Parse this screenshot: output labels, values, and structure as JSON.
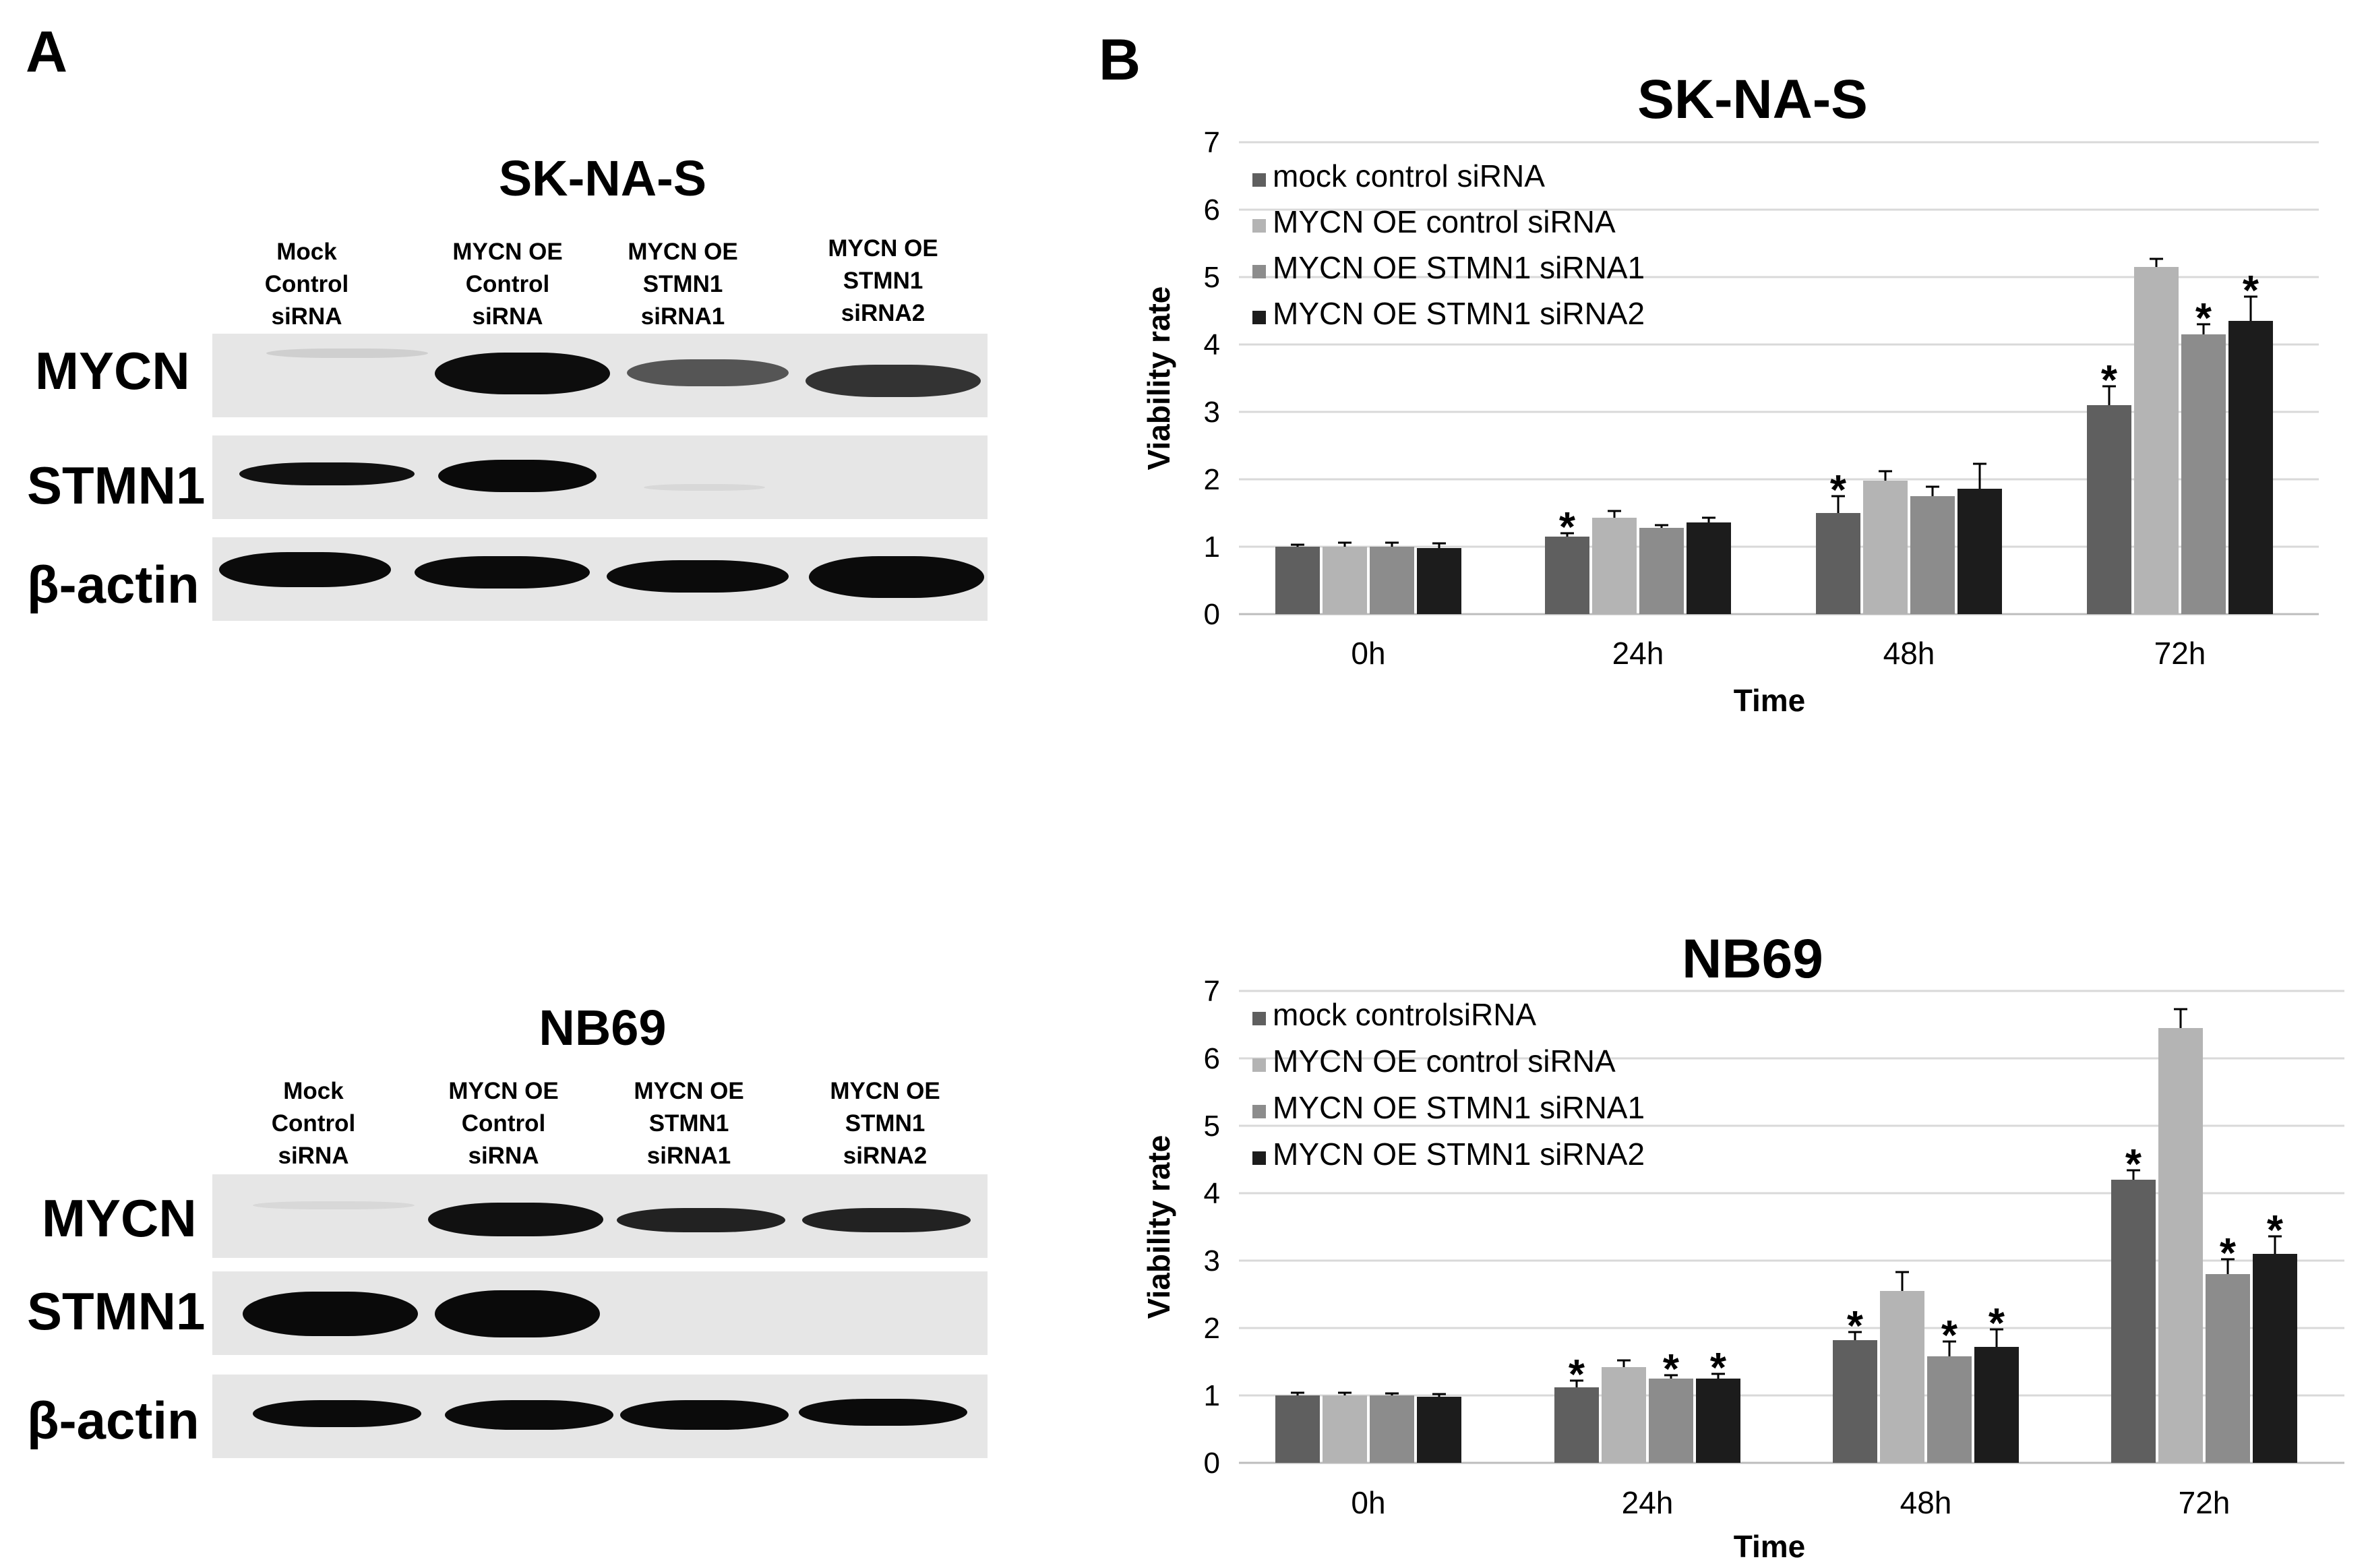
{
  "panel_a": {
    "letter": "A",
    "blots": [
      {
        "title": "SK-NA-S",
        "lanes": [
          [
            "Mock",
            "Control",
            "siRNA"
          ],
          [
            "MYCN OE",
            "Control",
            "siRNA"
          ],
          [
            "MYCN OE",
            "STMN1",
            "siRNA1"
          ],
          [
            "MYCN OE",
            "STMN1",
            "siRNA2"
          ]
        ],
        "rows": [
          "MYCN",
          "STMN1",
          "β-actin"
        ]
      },
      {
        "title": "NB69",
        "lanes": [
          [
            "Mock",
            "Control",
            "siRNA"
          ],
          [
            "MYCN OE",
            "Control",
            "siRNA"
          ],
          [
            "MYCN OE",
            "STMN1",
            "siRNA1"
          ],
          [
            "MYCN OE",
            "STMN1",
            "siRNA2"
          ]
        ],
        "rows": [
          "MYCN",
          "STMN1",
          "β-actin"
        ]
      }
    ]
  },
  "panel_b": {
    "letter": "B"
  },
  "colors": [
    "#5f5f5f",
    "#b4b4b4",
    "#8c8c8c",
    "#1c1c1c"
  ],
  "chart_data": [
    {
      "type": "bar",
      "title": "SK-NA-S",
      "xlabel": "Time",
      "ylabel": "Viability rate",
      "categories": [
        "0h",
        "24h",
        "48h",
        "72h"
      ],
      "ylim": [
        0,
        7
      ],
      "yticks": [
        "0",
        "1",
        "2",
        "3",
        "4",
        "5",
        "6",
        "7"
      ],
      "grid": true,
      "legend_position": "top-left",
      "series": [
        {
          "name": "mock control siRNA",
          "values": [
            1.0,
            1.15,
            1.5,
            3.1
          ],
          "errors": [
            0.03,
            0.05,
            0.25,
            0.28
          ],
          "significant": [
            false,
            true,
            true,
            true
          ]
        },
        {
          "name": "MYCN OE control siRNA",
          "values": [
            1.0,
            1.43,
            1.98,
            5.15
          ],
          "errors": [
            0.06,
            0.1,
            0.14,
            0.12
          ],
          "significant": [
            false,
            false,
            false,
            false
          ]
        },
        {
          "name": "MYCN OE STMN1 siRNA1",
          "values": [
            1.0,
            1.28,
            1.75,
            4.15
          ],
          "errors": [
            0.06,
            0.04,
            0.14,
            0.15
          ],
          "significant": [
            false,
            false,
            false,
            true
          ]
        },
        {
          "name": "MYCN OE STMN1 siRNA2",
          "values": [
            0.98,
            1.36,
            1.86,
            4.35
          ],
          "errors": [
            0.07,
            0.07,
            0.37,
            0.36
          ],
          "significant": [
            false,
            false,
            false,
            true
          ]
        }
      ],
      "star_label": "*"
    },
    {
      "type": "bar",
      "title": "NB69",
      "xlabel": "Time",
      "ylabel": "Viability rate",
      "categories": [
        "0h",
        "24h",
        "48h",
        "72h"
      ],
      "ylim": [
        0,
        7
      ],
      "yticks": [
        "0",
        "1",
        "2",
        "3",
        "4",
        "5",
        "6",
        "7"
      ],
      "grid": true,
      "legend_position": "top-left",
      "series": [
        {
          "name": "mock controlsiRNA",
          "values": [
            1.0,
            1.12,
            1.82,
            4.2
          ],
          "errors": [
            0.04,
            0.1,
            0.12,
            0.14
          ],
          "significant": [
            false,
            true,
            true,
            true
          ]
        },
        {
          "name": "MYCN OE control siRNA",
          "values": [
            1.0,
            1.42,
            2.55,
            6.45
          ],
          "errors": [
            0.04,
            0.1,
            0.28,
            0.28
          ],
          "significant": [
            false,
            false,
            false,
            false
          ]
        },
        {
          "name": "MYCN OE STMN1 siRNA1",
          "values": [
            1.0,
            1.25,
            1.58,
            2.8
          ],
          "errors": [
            0.03,
            0.05,
            0.22,
            0.22
          ],
          "significant": [
            false,
            true,
            true,
            true
          ]
        },
        {
          "name": "MYCN OE STMN1 siRNA2",
          "values": [
            0.98,
            1.25,
            1.72,
            3.1
          ],
          "errors": [
            0.04,
            0.07,
            0.26,
            0.26
          ],
          "significant": [
            false,
            true,
            true,
            true
          ]
        }
      ],
      "star_label": "*"
    }
  ]
}
